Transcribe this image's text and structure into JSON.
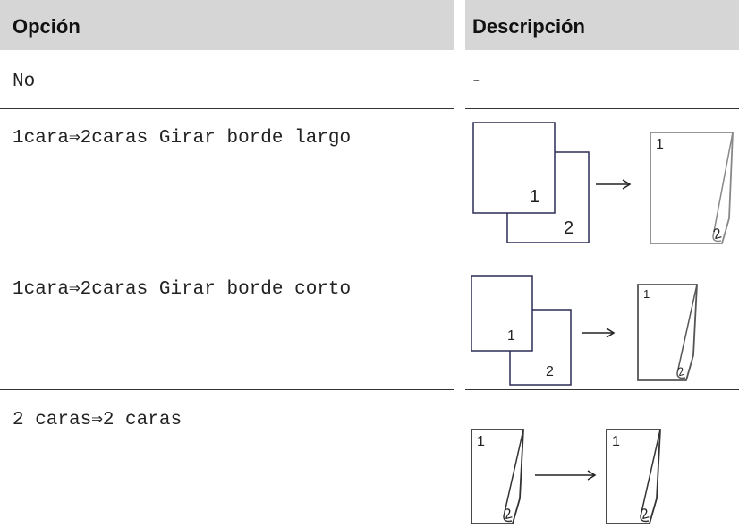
{
  "header": {
    "option": "Opción",
    "description": "Descripción"
  },
  "rows": [
    {
      "option": "No",
      "description": "-"
    },
    {
      "option": "1cara⇒2caras Girar borde largo"
    },
    {
      "option": "1cara⇒2caras Girar borde corto"
    },
    {
      "option": "2 caras⇒2 caras"
    }
  ],
  "icon_labels": [
    "1",
    "2"
  ]
}
